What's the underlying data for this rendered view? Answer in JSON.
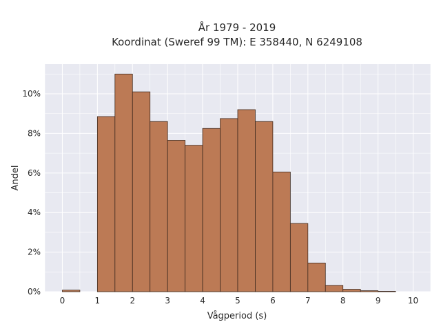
{
  "chart_data": {
    "type": "bar",
    "title": "År 1979 - 2019",
    "subtitle": "Koordinat (Sweref 99 TM): E 358440, N 6249108",
    "xlabel": "Vågperiod (s)",
    "ylabel": "Andel",
    "bin_width": 0.5,
    "bins": [
      {
        "x0": 0.0,
        "value": 0.08
      },
      {
        "x0": 0.5,
        "value": 0.0
      },
      {
        "x0": 1.0,
        "value": 8.85
      },
      {
        "x0": 1.5,
        "value": 11.0
      },
      {
        "x0": 2.0,
        "value": 10.1
      },
      {
        "x0": 2.5,
        "value": 8.6
      },
      {
        "x0": 3.0,
        "value": 7.65
      },
      {
        "x0": 3.5,
        "value": 7.4
      },
      {
        "x0": 4.0,
        "value": 8.25
      },
      {
        "x0": 4.5,
        "value": 8.75
      },
      {
        "x0": 5.0,
        "value": 9.2
      },
      {
        "x0": 5.5,
        "value": 8.6
      },
      {
        "x0": 6.0,
        "value": 6.05
      },
      {
        "x0": 6.5,
        "value": 3.45
      },
      {
        "x0": 7.0,
        "value": 1.45
      },
      {
        "x0": 7.5,
        "value": 0.32
      },
      {
        "x0": 8.0,
        "value": 0.12
      },
      {
        "x0": 8.5,
        "value": 0.05
      },
      {
        "x0": 9.0,
        "value": 0.02
      }
    ],
    "xlim": [
      -0.5,
      10.5
    ],
    "ylim": [
      0,
      11.5
    ],
    "xticks": [
      0,
      1,
      2,
      3,
      4,
      5,
      6,
      7,
      8,
      9,
      10
    ],
    "yticks": [
      0,
      2,
      4,
      6,
      8,
      10
    ],
    "ytick_suffix": "%",
    "grid": true,
    "bar_color": "#bc7a55",
    "bar_edge_color": "#3f2a1f",
    "plot_background": "#e8e9f1",
    "gridline_color": "#ffffff"
  }
}
